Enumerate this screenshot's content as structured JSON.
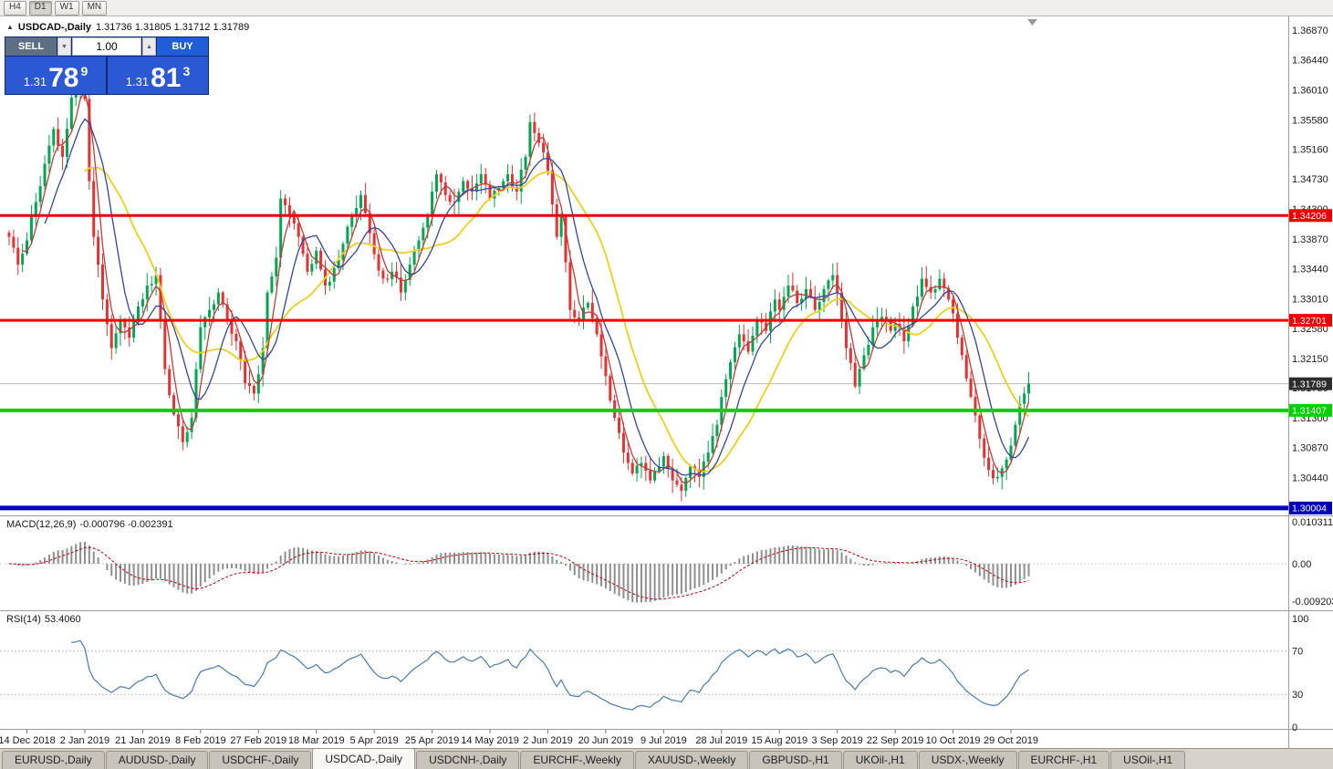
{
  "toolbar": {
    "timeframes": [
      "H4",
      "D1",
      "W1",
      "MN"
    ],
    "active": "D1"
  },
  "chart": {
    "title_text": "USDCAD-,Daily",
    "ohlc_text": "1.31736 1.31805 1.31712 1.31789"
  },
  "icons": {
    "collapse": "▲",
    "volume_down": "▼",
    "volume_up": "▲",
    "scroll_marker": "▼"
  },
  "trade_panel": {
    "sell_label": "SELL",
    "buy_label": "BUY",
    "volume": "1.00",
    "sell_price": {
      "base": "1.31",
      "big": "78",
      "sup": "9"
    },
    "buy_price": {
      "base": "1.31",
      "big": "81",
      "sup": "3"
    }
  },
  "levels": [
    {
      "price": 1.34206,
      "label": "1.34206",
      "color": "#ee0000",
      "width": 3
    },
    {
      "price": 1.32701,
      "label": "1.32701",
      "color": "#ee0000",
      "width": 3
    },
    {
      "price": 1.31407,
      "label": "1.31407",
      "color": "#00cf00",
      "width": 4
    },
    {
      "price": 1.30004,
      "label": "1.30004",
      "color": "#0000bb",
      "width": 5
    }
  ],
  "current_price": {
    "value": 1.31789,
    "label": "1.31789",
    "badge_color": "#2d2d2d",
    "line_color": "#b8b8b8"
  },
  "macd": {
    "title": "MACD(12,26,9)",
    "values": "-0.000796 -0.002391",
    "fast": 12,
    "slow": 26,
    "signal": 9,
    "axis_labels": [
      {
        "v": 0.010311,
        "text": "0.0103110"
      },
      {
        "v": 0,
        "text": "0.00"
      },
      {
        "v": -0.009203,
        "text": "-0.0092030"
      }
    ]
  },
  "rsi": {
    "title": "RSI(14)",
    "value": "53.4060",
    "period": 14,
    "guide_levels": [
      70,
      30
    ],
    "axis_labels": [
      {
        "v": 100,
        "text": "100"
      },
      {
        "v": 70,
        "text": "70"
      },
      {
        "v": 30,
        "text": "30"
      },
      {
        "v": 0,
        "text": "0"
      }
    ]
  },
  "tabs": {
    "items": [
      "EURUSD-,Daily",
      "AUDUSD-,Daily",
      "USDCHF-,Daily",
      "USDCAD-,Daily",
      "USDCNH-,Daily",
      "EURCHF-,Weekly",
      "XAUUSD-,Weekly",
      "GBPUSD-,H1",
      "UKOil-,H1",
      "USDX-,Weekly",
      "EURCHF-,H1",
      "USOil-,H1"
    ],
    "active_index": 3
  },
  "chart_data": {
    "type": "candlestick",
    "symbol": "USDCAD-",
    "timeframe": "Daily",
    "ohlc_display": {
      "open": "1.31736",
      "high": "1.31805",
      "low": "1.31712",
      "close": "1.31789"
    },
    "bars_total": 230,
    "price_axis": {
      "labels": [
        "1.36870",
        "1.36440",
        "1.36010",
        "1.35580",
        "1.35160",
        "1.34730",
        "1.34300",
        "1.33870",
        "1.33440",
        "1.33010",
        "1.32580",
        "1.32150",
        "1.31730",
        "1.31300",
        "1.30870",
        "1.30440"
      ]
    },
    "x_axis_labels": [
      {
        "bar": 4,
        "text": "14 Dec 2018"
      },
      {
        "bar": 17,
        "text": "2 Jan 2019"
      },
      {
        "bar": 30,
        "text": "21 Jan 2019"
      },
      {
        "bar": 43,
        "text": "8 Feb 2019"
      },
      {
        "bar": 56,
        "text": "27 Feb 2019"
      },
      {
        "bar": 69,
        "text": "18 Mar 2019"
      },
      {
        "bar": 82,
        "text": "5 Apr 2019"
      },
      {
        "bar": 95,
        "text": "25 Apr 2019"
      },
      {
        "bar": 108,
        "text": "14 May 2019"
      },
      {
        "bar": 121,
        "text": "2 Jun 2019"
      },
      {
        "bar": 134,
        "text": "20 Jun 2019"
      },
      {
        "bar": 147,
        "text": "9 Jul 2019"
      },
      {
        "bar": 160,
        "text": "28 Jul 2019"
      },
      {
        "bar": 173,
        "text": "15 Aug 2019"
      },
      {
        "bar": 186,
        "text": "3 Sep 2019"
      },
      {
        "bar": 199,
        "text": "22 Sep 2019"
      },
      {
        "bar": 212,
        "text": "10 Oct 2019"
      },
      {
        "bar": 225,
        "text": "29 Oct 2019"
      }
    ],
    "close_anchors": [
      [
        0,
        1.339
      ],
      [
        2,
        1.335
      ],
      [
        4,
        1.3385
      ],
      [
        6,
        1.344
      ],
      [
        8,
        1.3495
      ],
      [
        10,
        1.3545
      ],
      [
        12,
        1.3505
      ],
      [
        14,
        1.359
      ],
      [
        16,
        1.3618
      ],
      [
        17,
        1.3588
      ],
      [
        18,
        1.347
      ],
      [
        19,
        1.339
      ],
      [
        21,
        1.33
      ],
      [
        23,
        1.323
      ],
      [
        25,
        1.327
      ],
      [
        27,
        1.3245
      ],
      [
        29,
        1.329
      ],
      [
        31,
        1.332
      ],
      [
        33,
        1.3335
      ],
      [
        34,
        1.327
      ],
      [
        35,
        1.32
      ],
      [
        37,
        1.3135
      ],
      [
        39,
        1.3095
      ],
      [
        41,
        1.313
      ],
      [
        43,
        1.326
      ],
      [
        45,
        1.3285
      ],
      [
        47,
        1.331
      ],
      [
        49,
        1.327
      ],
      [
        51,
        1.324
      ],
      [
        53,
        1.318
      ],
      [
        55,
        1.3165
      ],
      [
        57,
        1.323
      ],
      [
        58,
        1.331
      ],
      [
        60,
        1.336
      ],
      [
        61,
        1.3445
      ],
      [
        63,
        1.342
      ],
      [
        65,
        1.339
      ],
      [
        67,
        1.334
      ],
      [
        69,
        1.337
      ],
      [
        71,
        1.332
      ],
      [
        73,
        1.3345
      ],
      [
        75,
        1.338
      ],
      [
        77,
        1.342
      ],
      [
        79,
        1.345
      ],
      [
        81,
        1.3395
      ],
      [
        82,
        1.3365
      ],
      [
        84,
        1.333
      ],
      [
        86,
        1.334
      ],
      [
        88,
        1.331
      ],
      [
        90,
        1.335
      ],
      [
        92,
        1.3385
      ],
      [
        94,
        1.342
      ],
      [
        95,
        1.3455
      ],
      [
        96,
        1.348
      ],
      [
        98,
        1.345
      ],
      [
        100,
        1.344
      ],
      [
        102,
        1.347
      ],
      [
        104,
        1.3455
      ],
      [
        106,
        1.348
      ],
      [
        108,
        1.3445
      ],
      [
        110,
        1.346
      ],
      [
        112,
        1.348
      ],
      [
        114,
        1.3455
      ],
      [
        116,
        1.3505
      ],
      [
        117,
        1.3555
      ],
      [
        119,
        1.3525
      ],
      [
        121,
        1.3485
      ],
      [
        123,
        1.339
      ],
      [
        124,
        1.342
      ],
      [
        126,
        1.3285
      ],
      [
        128,
        1.327
      ],
      [
        130,
        1.3295
      ],
      [
        132,
        1.325
      ],
      [
        134,
        1.319
      ],
      [
        136,
        1.313
      ],
      [
        138,
        1.308
      ],
      [
        140,
        1.305
      ],
      [
        142,
        1.3065
      ],
      [
        144,
        1.304
      ],
      [
        146,
        1.306
      ],
      [
        147,
        1.3075
      ],
      [
        149,
        1.304
      ],
      [
        151,
        1.3025
      ],
      [
        153,
        1.306
      ],
      [
        155,
        1.3045
      ],
      [
        157,
        1.308
      ],
      [
        159,
        1.312
      ],
      [
        160,
        1.316
      ],
      [
        162,
        1.321
      ],
      [
        164,
        1.325
      ],
      [
        166,
        1.3225
      ],
      [
        168,
        1.327
      ],
      [
        170,
        1.3255
      ],
      [
        172,
        1.33
      ],
      [
        173,
        1.3285
      ],
      [
        175,
        1.332
      ],
      [
        177,
        1.3295
      ],
      [
        179,
        1.3315
      ],
      [
        181,
        1.3285
      ],
      [
        183,
        1.3315
      ],
      [
        185,
        1.3335
      ],
      [
        186,
        1.331
      ],
      [
        188,
        1.323
      ],
      [
        190,
        1.3175
      ],
      [
        192,
        1.322
      ],
      [
        194,
        1.326
      ],
      [
        196,
        1.3275
      ],
      [
        198,
        1.3255
      ],
      [
        199,
        1.3265
      ],
      [
        201,
        1.324
      ],
      [
        203,
        1.329
      ],
      [
        205,
        1.333
      ],
      [
        207,
        1.331
      ],
      [
        209,
        1.333
      ],
      [
        211,
        1.33
      ],
      [
        212,
        1.328
      ],
      [
        214,
        1.322
      ],
      [
        216,
        1.316
      ],
      [
        218,
        1.31
      ],
      [
        220,
        1.3055
      ],
      [
        222,
        1.3045
      ],
      [
        224,
        1.307
      ],
      [
        225,
        1.309
      ],
      [
        226,
        1.312
      ],
      [
        227,
        1.315
      ],
      [
        228,
        1.3165
      ],
      [
        229,
        1.3179
      ]
    ],
    "colors": {
      "up": "#00a551",
      "down": "#e23232",
      "ma_fast": "#c23b3b",
      "ma_mid": "#31479e",
      "ma_slow": "#efcf1d",
      "macd_hist": "#8e8e8e",
      "macd_signal": "#c00000",
      "rsi": "#4a7ab0"
    }
  }
}
